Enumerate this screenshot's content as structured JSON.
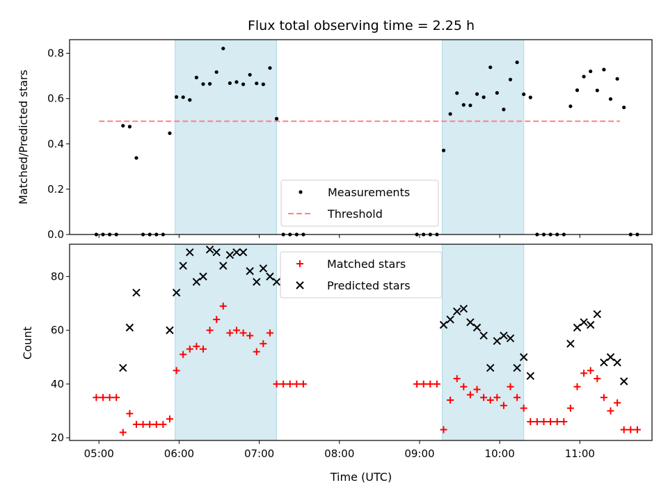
{
  "chart_data": [
    {
      "type": "scatter",
      "title": "Flux total observing time = 2.25 h",
      "xlabel": "",
      "ylabel": "Matched/Predicted stars",
      "ylim": [
        0,
        0.86
      ],
      "yticks": [
        "0.0",
        "0.2",
        "0.4",
        "0.6",
        "0.8"
      ],
      "xlim": [
        "04:38",
        "11:54"
      ],
      "xticks": [
        "05:00",
        "06:00",
        "07:00",
        "08:00",
        "09:00",
        "10:00",
        "11:00"
      ],
      "legend_position": "lower center",
      "shaded_intervals": [
        [
          "05:57",
          "07:13"
        ],
        [
          "09:17",
          "10:18"
        ]
      ],
      "shade_color": "#add8e6",
      "threshold": {
        "name": "Threshold",
        "value": 0.5,
        "x_range": [
          "05:00",
          "11:30"
        ],
        "color": "#ff8080"
      },
      "series": [
        {
          "name": "Measurements",
          "marker": "dot",
          "color": "#000000",
          "points": [
            [
              "04:58",
              0
            ],
            [
              "05:03",
              0
            ],
            [
              "05:08",
              0
            ],
            [
              "05:13",
              0
            ],
            [
              "05:18",
              0.48
            ],
            [
              "05:23",
              0.476
            ],
            [
              "05:28",
              0.338
            ],
            [
              "05:33",
              0
            ],
            [
              "05:38",
              0
            ],
            [
              "05:43",
              0
            ],
            [
              "05:48",
              0
            ],
            [
              "05:53",
              0.447
            ],
            [
              "05:58",
              0.607
            ],
            [
              "06:03",
              0.606
            ],
            [
              "06:08",
              0.594
            ],
            [
              "06:13",
              0.693
            ],
            [
              "06:18",
              0.664
            ],
            [
              "06:23",
              0.665
            ],
            [
              "06:28",
              0.717
            ],
            [
              "06:33",
              0.821
            ],
            [
              "06:38",
              0.668
            ],
            [
              "06:43",
              0.673
            ],
            [
              "06:48",
              0.663
            ],
            [
              "06:53",
              0.705
            ],
            [
              "06:58",
              0.667
            ],
            [
              "07:03",
              0.663
            ],
            [
              "07:08",
              0.735
            ],
            [
              "07:13",
              0.511
            ],
            [
              "07:18",
              0
            ],
            [
              "07:23",
              0
            ],
            [
              "07:28",
              0
            ],
            [
              "07:33",
              0
            ],
            [
              "08:58",
              0
            ],
            [
              "09:03",
              0
            ],
            [
              "09:08",
              0
            ],
            [
              "09:13",
              0
            ],
            [
              "09:18",
              0.371
            ],
            [
              "09:23",
              0.532
            ],
            [
              "09:28",
              0.624
            ],
            [
              "09:33",
              0.572
            ],
            [
              "09:38",
              0.57
            ],
            [
              "09:43",
              0.62
            ],
            [
              "09:48",
              0.606
            ],
            [
              "09:53",
              0.738
            ],
            [
              "09:58",
              0.625
            ],
            [
              "10:03",
              0.552
            ],
            [
              "10:08",
              0.684
            ],
            [
              "10:13",
              0.76
            ],
            [
              "10:18",
              0.619
            ],
            [
              "10:23",
              0.605
            ],
            [
              "10:28",
              0
            ],
            [
              "10:33",
              0
            ],
            [
              "10:38",
              0
            ],
            [
              "10:43",
              0
            ],
            [
              "10:48",
              0
            ],
            [
              "10:53",
              0.566
            ],
            [
              "10:58",
              0.637
            ],
            [
              "11:03",
              0.697
            ],
            [
              "11:08",
              0.72
            ],
            [
              "11:13",
              0.636
            ],
            [
              "11:18",
              0.728
            ],
            [
              "11:23",
              0.598
            ],
            [
              "11:28",
              0.687
            ],
            [
              "11:33",
              0.561
            ],
            [
              "11:38",
              0
            ],
            [
              "11:43",
              0
            ]
          ]
        }
      ]
    },
    {
      "type": "scatter",
      "title": "",
      "xlabel": "Time (UTC)",
      "ylabel": "Count",
      "ylim": [
        19,
        92
      ],
      "yticks": [
        "20",
        "40",
        "60",
        "80"
      ],
      "xlim": [
        "04:38",
        "11:54"
      ],
      "xticks": [
        "05:00",
        "06:00",
        "07:00",
        "08:00",
        "09:00",
        "10:00",
        "11:00"
      ],
      "legend_position": "upper center",
      "shaded_intervals": [
        [
          "05:57",
          "07:13"
        ],
        [
          "09:17",
          "10:18"
        ]
      ],
      "shade_color": "#add8e6",
      "series": [
        {
          "name": "Matched stars",
          "marker": "plus",
          "color": "#ff0000",
          "points": [
            [
              "04:58",
              35
            ],
            [
              "05:03",
              35
            ],
            [
              "05:08",
              35
            ],
            [
              "05:13",
              35
            ],
            [
              "05:18",
              22
            ],
            [
              "05:23",
              29
            ],
            [
              "05:28",
              25
            ],
            [
              "05:33",
              25
            ],
            [
              "05:38",
              25
            ],
            [
              "05:43",
              25
            ],
            [
              "05:48",
              25
            ],
            [
              "05:53",
              27
            ],
            [
              "05:58",
              45
            ],
            [
              "06:03",
              51
            ],
            [
              "06:08",
              53
            ],
            [
              "06:13",
              54
            ],
            [
              "06:18",
              53
            ],
            [
              "06:23",
              60
            ],
            [
              "06:28",
              64
            ],
            [
              "06:33",
              69
            ],
            [
              "06:38",
              59
            ],
            [
              "06:43",
              60
            ],
            [
              "06:48",
              59
            ],
            [
              "06:53",
              58
            ],
            [
              "06:58",
              52
            ],
            [
              "07:03",
              55
            ],
            [
              "07:08",
              59
            ],
            [
              "07:13",
              40
            ],
            [
              "07:18",
              40
            ],
            [
              "07:23",
              40
            ],
            [
              "07:28",
              40
            ],
            [
              "07:33",
              40
            ],
            [
              "08:58",
              40
            ],
            [
              "09:03",
              40
            ],
            [
              "09:08",
              40
            ],
            [
              "09:13",
              40
            ],
            [
              "09:18",
              23
            ],
            [
              "09:23",
              34
            ],
            [
              "09:28",
              42
            ],
            [
              "09:33",
              39
            ],
            [
              "09:38",
              36
            ],
            [
              "09:43",
              38
            ],
            [
              "09:48",
              35
            ],
            [
              "09:53",
              34
            ],
            [
              "09:58",
              35
            ],
            [
              "10:03",
              32
            ],
            [
              "10:08",
              39
            ],
            [
              "10:13",
              35
            ],
            [
              "10:18",
              31
            ],
            [
              "10:23",
              26
            ],
            [
              "10:28",
              26
            ],
            [
              "10:33",
              26
            ],
            [
              "10:38",
              26
            ],
            [
              "10:43",
              26
            ],
            [
              "10:48",
              26
            ],
            [
              "10:53",
              31
            ],
            [
              "10:58",
              39
            ],
            [
              "11:03",
              44
            ],
            [
              "11:08",
              45
            ],
            [
              "11:13",
              42
            ],
            [
              "11:18",
              35
            ],
            [
              "11:23",
              30
            ],
            [
              "11:28",
              33
            ],
            [
              "11:33",
              23
            ],
            [
              "11:38",
              23
            ],
            [
              "11:43",
              23
            ]
          ]
        },
        {
          "name": "Predicted stars",
          "marker": "x",
          "color": "#000000",
          "points": [
            [
              "05:18",
              46
            ],
            [
              "05:23",
              61
            ],
            [
              "05:28",
              74
            ],
            [
              "05:53",
              60
            ],
            [
              "05:58",
              74
            ],
            [
              "06:03",
              84
            ],
            [
              "06:08",
              89
            ],
            [
              "06:13",
              78
            ],
            [
              "06:18",
              80
            ],
            [
              "06:23",
              90
            ],
            [
              "06:28",
              89
            ],
            [
              "06:33",
              84
            ],
            [
              "06:38",
              88
            ],
            [
              "06:43",
              89
            ],
            [
              "06:48",
              89
            ],
            [
              "06:53",
              82
            ],
            [
              "06:58",
              78
            ],
            [
              "07:03",
              83
            ],
            [
              "07:08",
              80
            ],
            [
              "07:13",
              78
            ],
            [
              "09:18",
              62
            ],
            [
              "09:23",
              64
            ],
            [
              "09:28",
              67
            ],
            [
              "09:33",
              68
            ],
            [
              "09:38",
              63
            ],
            [
              "09:43",
              61
            ],
            [
              "09:48",
              58
            ],
            [
              "09:53",
              46
            ],
            [
              "09:58",
              56
            ],
            [
              "10:03",
              58
            ],
            [
              "10:08",
              57
            ],
            [
              "10:13",
              46
            ],
            [
              "10:18",
              50
            ],
            [
              "10:23",
              43
            ],
            [
              "10:53",
              55
            ],
            [
              "10:58",
              61
            ],
            [
              "11:03",
              63
            ],
            [
              "11:08",
              62
            ],
            [
              "11:13",
              66
            ],
            [
              "11:18",
              48
            ],
            [
              "11:23",
              50
            ],
            [
              "11:28",
              48
            ],
            [
              "11:33",
              41
            ]
          ]
        }
      ]
    }
  ]
}
